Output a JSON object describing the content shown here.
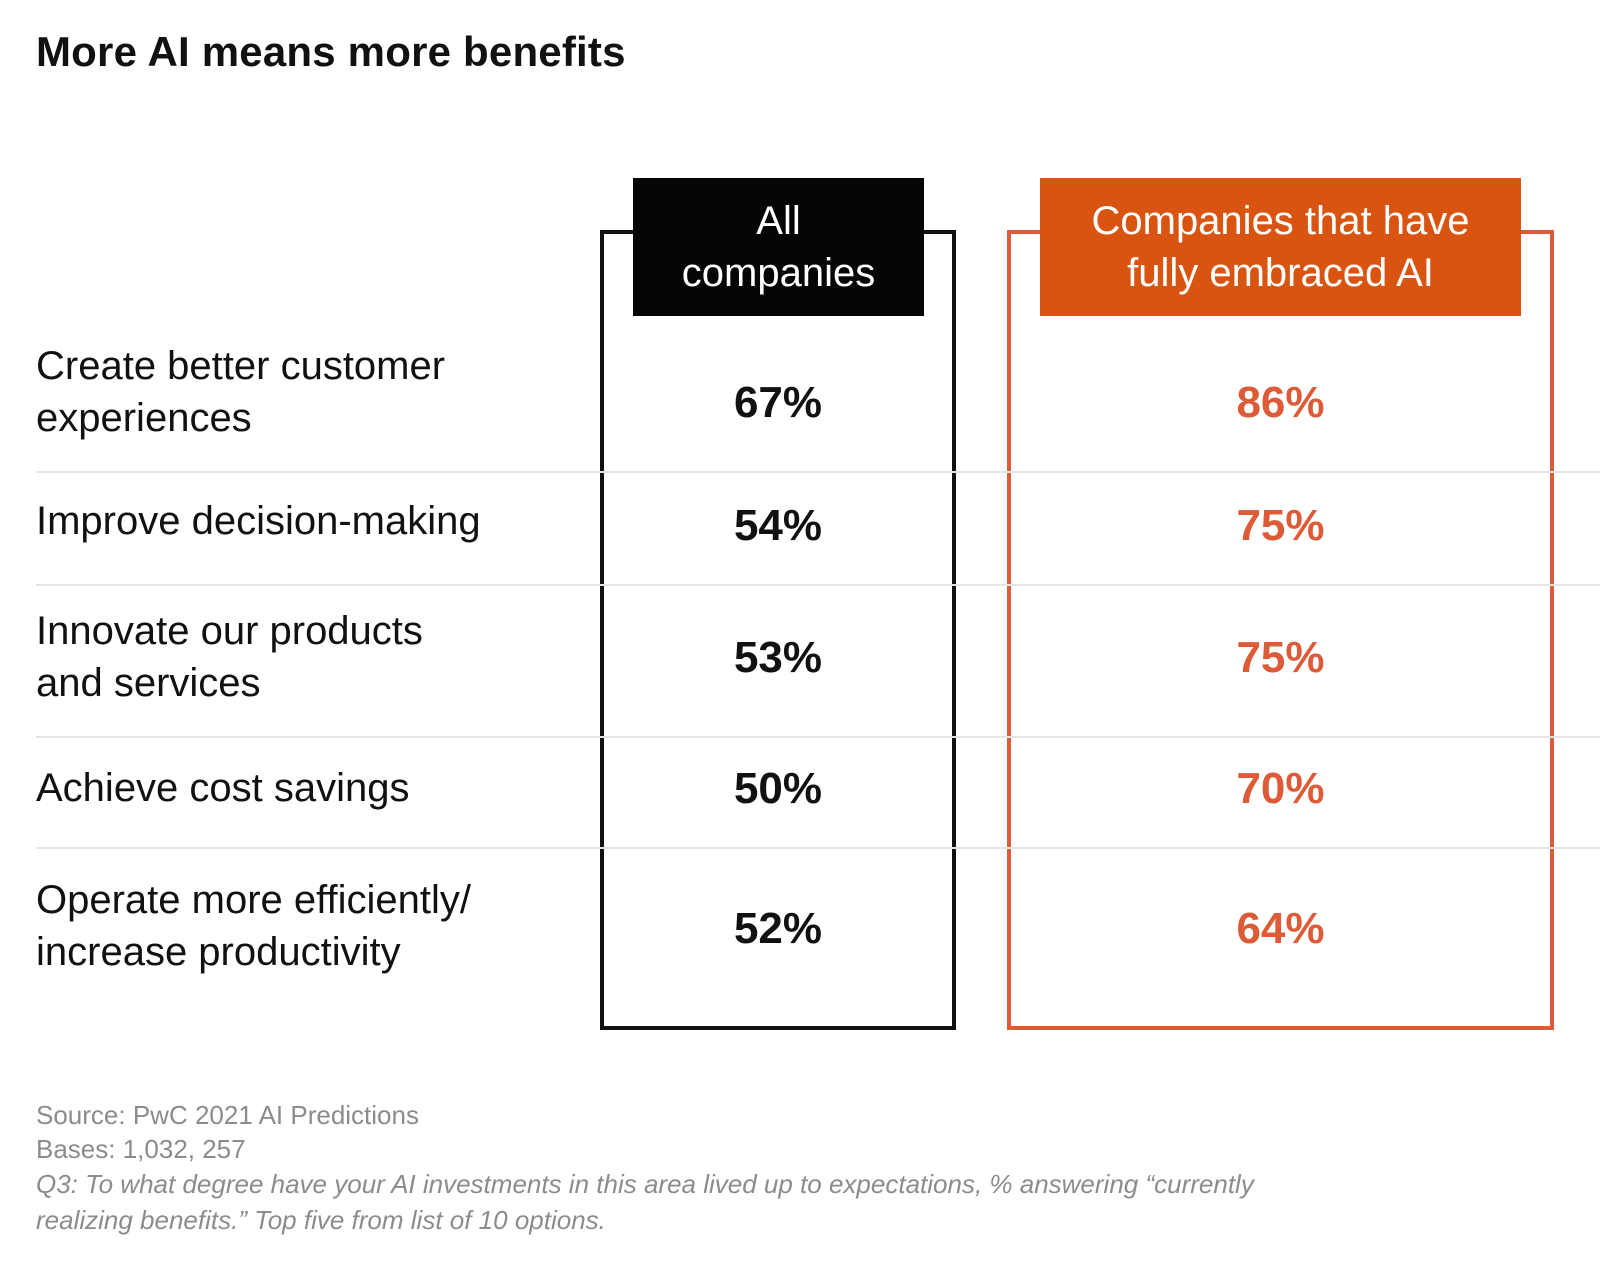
{
  "title": "More AI means more benefits",
  "colors": {
    "all": "#111111",
    "ai": "#dd5b37",
    "header_ai_bg": "#d85410"
  },
  "chart_data": {
    "type": "table",
    "title": "More AI means more benefits",
    "columns": [
      "All companies",
      "Companies that have fully embraced AI"
    ],
    "rows": [
      {
        "label": "Create better customer experiences",
        "all": "67%",
        "ai": "86%"
      },
      {
        "label": "Improve decision-making",
        "all": "54%",
        "ai": "75%"
      },
      {
        "label": "Innovate our products and services",
        "all": "53%",
        "ai": "75%"
      },
      {
        "label": "Achieve cost savings",
        "all": "50%",
        "ai": "70%"
      },
      {
        "label": "Operate more efficiently/ increase productivity",
        "all": "52%",
        "ai": "64%"
      }
    ]
  },
  "headers": {
    "all": "All\ncompanies",
    "ai": "Companies that have\nfully embraced AI"
  },
  "row_labels": [
    "Create better customer\nexperiences",
    "Improve decision-making",
    "Innovate our products\nand services",
    "Achieve cost savings",
    "Operate more efficiently/\nincrease productivity"
  ],
  "footer": {
    "source": "Source: PwC 2021 AI Predictions",
    "bases": "Bases: 1,032, 257",
    "question": "Q3: To what degree have your AI investments in this area lived up to expectations, % answering “currently realizing benefits.” Top five from list of 10 options."
  }
}
